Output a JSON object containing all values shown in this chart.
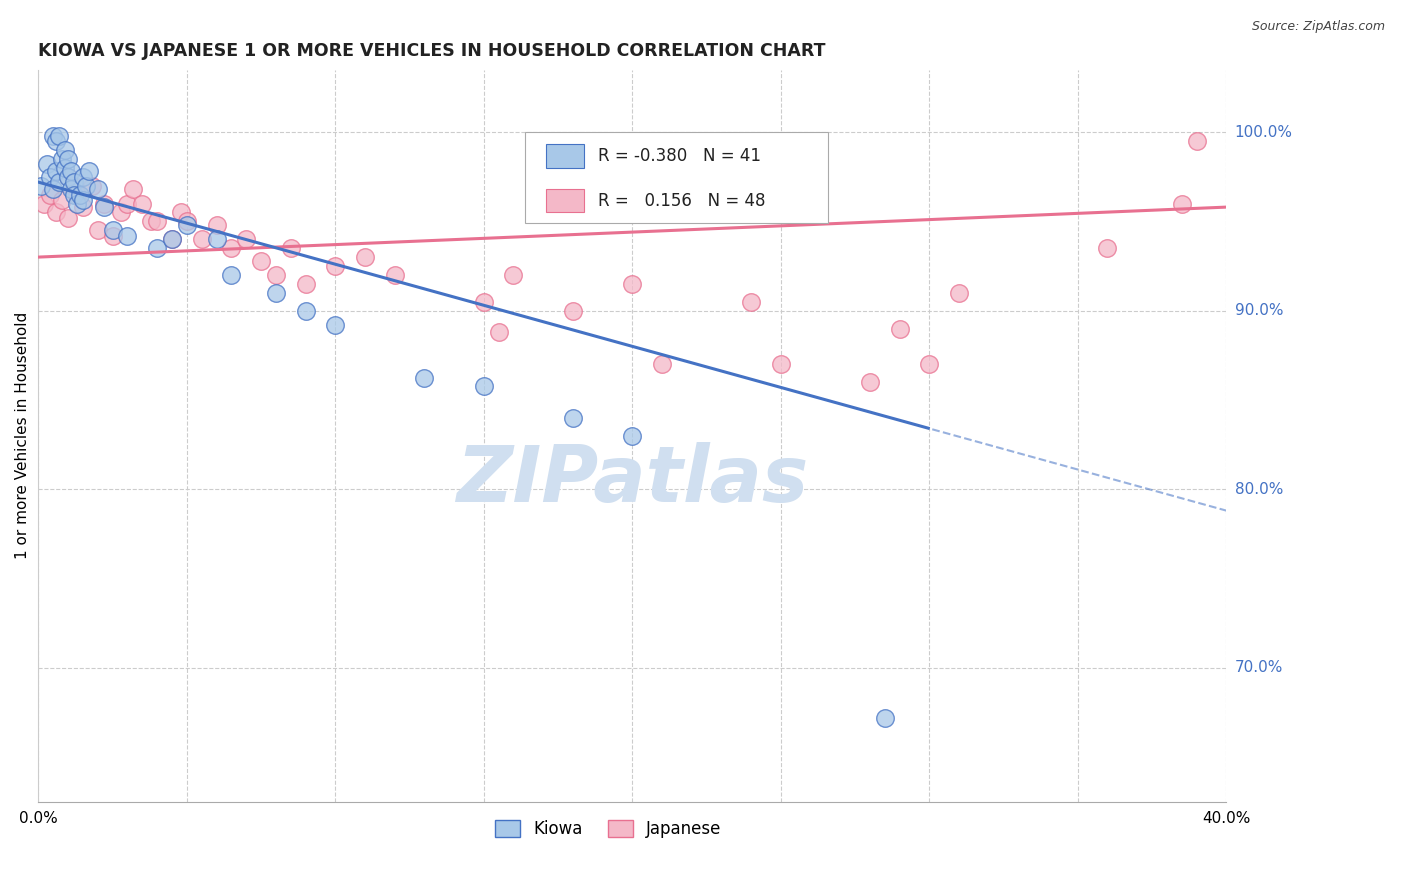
{
  "title": "KIOWA VS JAPANESE 1 OR MORE VEHICLES IN HOUSEHOLD CORRELATION CHART",
  "source": "Source: ZipAtlas.com",
  "ylabel": "1 or more Vehicles in Household",
  "x_min": 0.0,
  "x_max": 0.4,
  "y_min": 0.625,
  "y_max": 1.035,
  "y_ticks": [
    0.7,
    0.8,
    0.9,
    1.0
  ],
  "y_tick_labels": [
    "70.0%",
    "80.0%",
    "90.0%",
    "100.0%"
  ],
  "x_ticks": [
    0.0,
    0.05,
    0.1,
    0.15,
    0.2,
    0.25,
    0.3,
    0.35,
    0.4
  ],
  "x_tick_labels": [
    "0.0%",
    "",
    "",
    "",
    "",
    "",
    "",
    "",
    "40.0%"
  ],
  "legend_r_blue": "-0.380",
  "legend_n_blue": "41",
  "legend_r_pink": "0.156",
  "legend_n_pink": "48",
  "blue_color": "#a8c8e8",
  "pink_color": "#f4b8c8",
  "blue_line_color": "#4472c4",
  "pink_line_color": "#e87090",
  "watermark": "ZIPatlas",
  "watermark_color": "#d0dff0",
  "blue_line_x0": 0.0,
  "blue_line_y0": 0.972,
  "blue_line_x1": 0.3,
  "blue_line_y1": 0.834,
  "pink_line_x0": 0.0,
  "pink_line_y0": 0.93,
  "pink_line_x1": 0.4,
  "pink_line_y1": 0.958,
  "kiowa_x": [
    0.001,
    0.003,
    0.004,
    0.005,
    0.005,
    0.006,
    0.006,
    0.007,
    0.007,
    0.008,
    0.009,
    0.009,
    0.01,
    0.01,
    0.011,
    0.011,
    0.012,
    0.012,
    0.013,
    0.014,
    0.015,
    0.015,
    0.016,
    0.017,
    0.02,
    0.022,
    0.025,
    0.03,
    0.04,
    0.045,
    0.05,
    0.06,
    0.065,
    0.08,
    0.09,
    0.1,
    0.13,
    0.15,
    0.18,
    0.2,
    0.285
  ],
  "kiowa_y": [
    0.97,
    0.982,
    0.975,
    0.998,
    0.968,
    0.995,
    0.978,
    0.998,
    0.972,
    0.985,
    0.99,
    0.98,
    0.975,
    0.985,
    0.978,
    0.968,
    0.972,
    0.965,
    0.96,
    0.965,
    0.962,
    0.975,
    0.97,
    0.978,
    0.968,
    0.958,
    0.945,
    0.942,
    0.935,
    0.94,
    0.948,
    0.94,
    0.92,
    0.91,
    0.9,
    0.892,
    0.862,
    0.858,
    0.84,
    0.83,
    0.672
  ],
  "japanese_x": [
    0.002,
    0.004,
    0.006,
    0.008,
    0.01,
    0.01,
    0.012,
    0.013,
    0.015,
    0.018,
    0.02,
    0.022,
    0.025,
    0.028,
    0.03,
    0.032,
    0.035,
    0.038,
    0.04,
    0.045,
    0.048,
    0.05,
    0.055,
    0.06,
    0.065,
    0.07,
    0.075,
    0.08,
    0.085,
    0.09,
    0.1,
    0.11,
    0.12,
    0.15,
    0.155,
    0.16,
    0.18,
    0.2,
    0.21,
    0.24,
    0.25,
    0.28,
    0.29,
    0.3,
    0.31,
    0.36,
    0.385,
    0.39
  ],
  "japanese_y": [
    0.96,
    0.965,
    0.955,
    0.962,
    0.975,
    0.952,
    0.97,
    0.965,
    0.958,
    0.97,
    0.945,
    0.96,
    0.942,
    0.955,
    0.96,
    0.968,
    0.96,
    0.95,
    0.95,
    0.94,
    0.955,
    0.95,
    0.94,
    0.948,
    0.935,
    0.94,
    0.928,
    0.92,
    0.935,
    0.915,
    0.925,
    0.93,
    0.92,
    0.905,
    0.888,
    0.92,
    0.9,
    0.915,
    0.87,
    0.905,
    0.87,
    0.86,
    0.89,
    0.87,
    0.91,
    0.935,
    0.96,
    0.995
  ]
}
